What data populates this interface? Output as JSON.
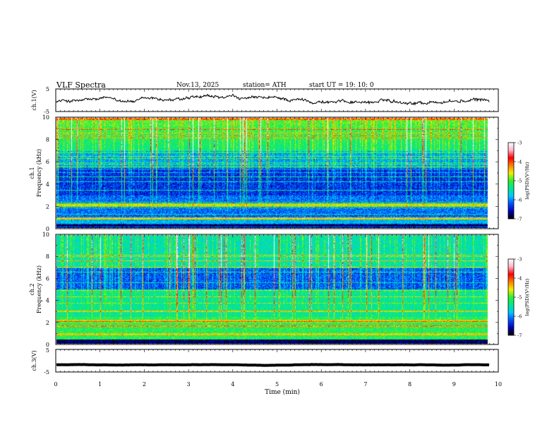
{
  "header": {
    "title": "VLF  Spectra",
    "date": "Nov.13, 2025",
    "station": "station= ATH",
    "start_ut": "start  UT  =    19: 10: 0"
  },
  "chart_data": {
    "type": "heatmap",
    "xlabel": "Time  (min)",
    "xlim": [
      0,
      10
    ],
    "xticks": [
      "0",
      "1",
      "2",
      "3",
      "4",
      "5",
      "6",
      "7",
      "8",
      "9",
      "10"
    ],
    "data_end_min": 9.8,
    "panels": [
      {
        "id": "ch1_waveform",
        "type": "line",
        "ylabel": "ch.1(V)",
        "ylim": [
          -5,
          5
        ],
        "yticks": [
          "5",
          "-5"
        ],
        "mean": -0.3
      },
      {
        "id": "ch1_spectrogram",
        "type": "heatmap",
        "ylabel": "ch.1\nFrequency  (kHz)",
        "ylim": [
          0,
          10
        ],
        "yticks": [
          "0",
          "2",
          "4",
          "6",
          "8",
          "10"
        ]
      },
      {
        "id": "ch2_spectrogram",
        "type": "heatmap",
        "ylabel": "ch.2\nFrequency  (kHz)",
        "ylim": [
          0,
          10
        ],
        "yticks": [
          "0",
          "2",
          "4",
          "6",
          "8",
          "10"
        ]
      },
      {
        "id": "ch3_waveform",
        "type": "line",
        "ylabel": "ch.3(V)",
        "ylim": [
          -5,
          5
        ],
        "yticks": [
          "5",
          "-5"
        ],
        "mean": -1.8
      }
    ],
    "colorbar": {
      "label": "log(PSD)(V²/Hz)",
      "range": [
        -7,
        -3
      ],
      "ticks": [
        "-3",
        "-4",
        "-5",
        "-6",
        "-7"
      ],
      "colors": [
        "#000000",
        "#0000b4",
        "#0050ff",
        "#00c8ff",
        "#00e890",
        "#30f030",
        "#f0f000",
        "#ff8000",
        "#ff0000",
        "#ffb4c8",
        "#ffffff"
      ]
    }
  }
}
